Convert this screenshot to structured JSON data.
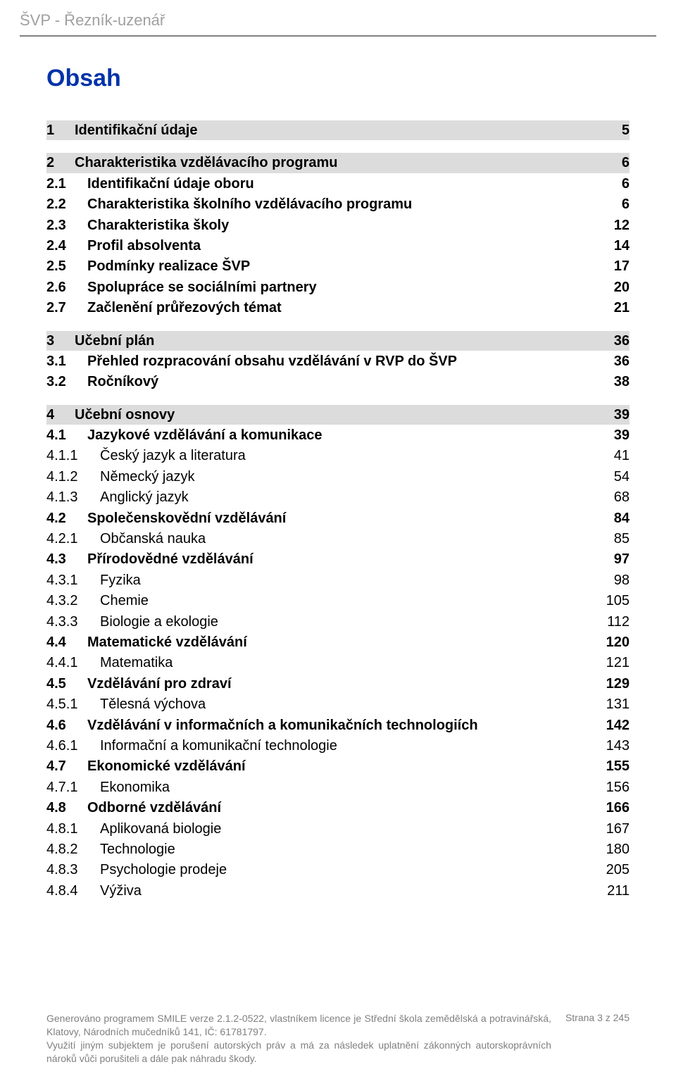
{
  "header": "ŠVP - Řezník-uzenář",
  "title": "Obsah",
  "colors": {
    "header_text": "#a0a0a0",
    "header_rule": "#808080",
    "title": "#0033aa",
    "body_text": "#000000",
    "section_bg": "#dcdcdc",
    "footer_text": "#808080",
    "background": "#ffffff"
  },
  "typography": {
    "header_fontsize": 22,
    "title_fontsize": 34,
    "toc_fontsize": 20,
    "footer_fontsize": 14,
    "font_family": "Arial"
  },
  "toc": [
    {
      "num": "1",
      "label": "Identifikační údaje",
      "page": "5",
      "level": 0,
      "section": true,
      "first": true
    },
    {
      "num": "2",
      "label": "Charakteristika vzdělávacího programu",
      "page": "6",
      "level": 0,
      "section": true
    },
    {
      "num": "2.1",
      "label": "Identifikační údaje oboru",
      "page": "6",
      "level": 1,
      "bold": true
    },
    {
      "num": "2.2",
      "label": "Charakteristika školního vzdělávacího programu",
      "page": "6",
      "level": 1,
      "bold": true
    },
    {
      "num": "2.3",
      "label": "Charakteristika školy",
      "page": "12",
      "level": 1,
      "bold": true
    },
    {
      "num": "2.4",
      "label": "Profil absolventa",
      "page": "14",
      "level": 1,
      "bold": true
    },
    {
      "num": "2.5",
      "label": "Podmínky realizace ŠVP",
      "page": "17",
      "level": 1,
      "bold": true
    },
    {
      "num": "2.6",
      "label": "Spolupráce se sociálními partnery",
      "page": "20",
      "level": 1,
      "bold": true
    },
    {
      "num": "2.7",
      "label": "Začlenění průřezových témat",
      "page": "21",
      "level": 1,
      "bold": true
    },
    {
      "num": "3",
      "label": "Učební plán",
      "page": "36",
      "level": 0,
      "section": true
    },
    {
      "num": "3.1",
      "label": "Přehled rozpracování obsahu vzdělávání v RVP do ŠVP",
      "page": "36",
      "level": 1,
      "bold": true
    },
    {
      "num": "3.2",
      "label": "Ročníkový",
      "page": "38",
      "level": 1,
      "bold": true
    },
    {
      "num": "4",
      "label": "Učební osnovy",
      "page": "39",
      "level": 0,
      "section": true
    },
    {
      "num": "4.1",
      "label": "Jazykové vzdělávání a komunikace",
      "page": "39",
      "level": 1,
      "bold": true
    },
    {
      "num": "4.1.1",
      "label": "Český jazyk a literatura",
      "page": "41",
      "level": 2
    },
    {
      "num": "4.1.2",
      "label": "Německý jazyk",
      "page": "54",
      "level": 2
    },
    {
      "num": "4.1.3",
      "label": "Anglický jazyk",
      "page": "68",
      "level": 2
    },
    {
      "num": "4.2",
      "label": "Společenskovědní vzdělávání",
      "page": "84",
      "level": 1,
      "bold": true
    },
    {
      "num": "4.2.1",
      "label": "Občanská nauka",
      "page": "85",
      "level": 2
    },
    {
      "num": "4.3",
      "label": "Přírodovědné vzdělávání",
      "page": "97",
      "level": 1,
      "bold": true
    },
    {
      "num": "4.3.1",
      "label": "Fyzika",
      "page": "98",
      "level": 2
    },
    {
      "num": "4.3.2",
      "label": "Chemie",
      "page": "105",
      "level": 2
    },
    {
      "num": "4.3.3",
      "label": "Biologie a ekologie",
      "page": "112",
      "level": 2
    },
    {
      "num": "4.4",
      "label": "Matematické vzdělávání",
      "page": "120",
      "level": 1,
      "bold": true
    },
    {
      "num": "4.4.1",
      "label": "Matematika",
      "page": "121",
      "level": 2
    },
    {
      "num": "4.5",
      "label": "Vzdělávání pro zdraví",
      "page": "129",
      "level": 1,
      "bold": true
    },
    {
      "num": "4.5.1",
      "label": "Tělesná výchova",
      "page": "131",
      "level": 2
    },
    {
      "num": "4.6",
      "label": "Vzdělávání v informačních a komunikačních technologiích",
      "page": "142",
      "level": 1,
      "bold": true
    },
    {
      "num": "4.6.1",
      "label": "Informační a komunikační technologie",
      "page": "143",
      "level": 2
    },
    {
      "num": "4.7",
      "label": "Ekonomické vzdělávání",
      "page": "155",
      "level": 1,
      "bold": true
    },
    {
      "num": "4.7.1",
      "label": "Ekonomika",
      "page": "156",
      "level": 2
    },
    {
      "num": "4.8",
      "label": "Odborné vzdělávání",
      "page": "166",
      "level": 1,
      "bold": true
    },
    {
      "num": "4.8.1",
      "label": "Aplikovaná biologie",
      "page": "167",
      "level": 2
    },
    {
      "num": "4.8.2",
      "label": "Technologie",
      "page": "180",
      "level": 2
    },
    {
      "num": "4.8.3",
      "label": "Psychologie prodeje",
      "page": "205",
      "level": 2
    },
    {
      "num": "4.8.4",
      "label": "Výživa",
      "page": "211",
      "level": 2
    }
  ],
  "footer": {
    "line1": "Generováno programem SMILE verze 2.1.2-0522, vlastníkem licence je Střední škola zemědělská a potravinářská, Klatovy, Národních mučedníků 141, IČ: 61781797.",
    "line2": "Využití jiným subjektem je porušení autorských práv a má za následek uplatnění zákonných autorskoprávních nároků vůči porušiteli a dále pak náhradu škody.",
    "page_label": "Strana 3 z 245"
  }
}
